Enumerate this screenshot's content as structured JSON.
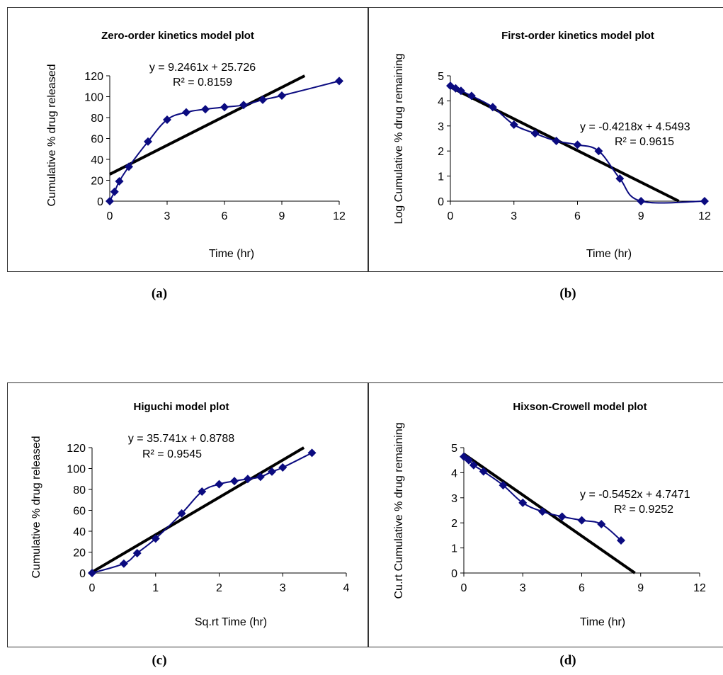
{
  "colors": {
    "series": "#0b0b80",
    "trendline": "#000000",
    "border": "#333333"
  },
  "chart_data": [
    {
      "type": "scatter",
      "title": "Zero-order kinetics model plot",
      "xlabel": "Time (hr)",
      "ylabel": "Cumulative % drug released",
      "xlim": [
        0,
        12
      ],
      "ylim": [
        0,
        120
      ],
      "xticks": [
        "0",
        "3",
        "6",
        "9",
        "12"
      ],
      "yticks": [
        "0",
        "20",
        "40",
        "60",
        "80",
        "100",
        "120"
      ],
      "grid": false,
      "series": [
        {
          "x": [
            0,
            0.25,
            0.5,
            1,
            2,
            3,
            4,
            5,
            6,
            7,
            8,
            9,
            12
          ],
          "y": [
            0,
            9,
            19,
            33,
            57,
            78,
            85,
            88,
            90,
            92,
            97,
            101,
            115
          ]
        }
      ],
      "trendline": {
        "slope": 9.2461,
        "intercept": 25.726
      },
      "equation": "y = 9.2461x + 25.726",
      "r2": "R² = 0.8159",
      "caption": "(a)"
    },
    {
      "type": "scatter",
      "title": "First-order kinetics model plot",
      "xlabel": "Time (hr)",
      "ylabel": "Log Cumulative % drug remaining",
      "xlim": [
        0,
        12
      ],
      "ylim": [
        0,
        5
      ],
      "xticks": [
        "0",
        "3",
        "6",
        "9",
        "12"
      ],
      "yticks": [
        "0",
        "1",
        "2",
        "3",
        "4",
        "5"
      ],
      "grid": false,
      "series": [
        {
          "x": [
            0,
            0.25,
            0.5,
            1,
            2,
            3,
            4,
            5,
            6,
            7,
            8,
            9,
            12
          ],
          "y": [
            4.6,
            4.5,
            4.4,
            4.2,
            3.75,
            3.05,
            2.7,
            2.4,
            2.25,
            2.0,
            0.9,
            0,
            0
          ]
        }
      ],
      "trendline": {
        "slope": -0.4218,
        "intercept": 4.5493
      },
      "equation": "y = -0.4218x + 4.5493",
      "r2": "R² = 0.9615",
      "caption": "(b)"
    },
    {
      "type": "scatter",
      "title": "Higuchi model plot",
      "xlabel": "Sq.rt Time (hr)",
      "ylabel": "Cumulative % drug released",
      "xlim": [
        0,
        4
      ],
      "ylim": [
        0,
        120
      ],
      "xticks": [
        "0",
        "1",
        "2",
        "3",
        "4"
      ],
      "yticks": [
        "0",
        "20",
        "40",
        "60",
        "80",
        "100",
        "120"
      ],
      "grid": false,
      "series": [
        {
          "x": [
            0,
            0.5,
            0.71,
            1,
            1.41,
            1.73,
            2,
            2.24,
            2.45,
            2.65,
            2.83,
            3,
            3.46
          ],
          "y": [
            0,
            9,
            19,
            33,
            57,
            78,
            85,
            88,
            90,
            92,
            97,
            101,
            115
          ]
        }
      ],
      "trendline": {
        "slope": 35.741,
        "intercept": 0.8788
      },
      "equation": "y = 35.741x + 0.8788",
      "r2": "R² = 0.9545",
      "caption": "(c)"
    },
    {
      "type": "scatter",
      "title": "Hixson-Crowell model plot",
      "xlabel": "Time (hr)",
      "ylabel": "Cu.rt Cumulative % drug remaining",
      "xlim": [
        0,
        12
      ],
      "ylim": [
        0,
        5
      ],
      "xticks": [
        "0",
        "3",
        "6",
        "9",
        "12"
      ],
      "yticks": [
        "0",
        "1",
        "2",
        "3",
        "4",
        "5"
      ],
      "grid": false,
      "series": [
        {
          "x": [
            0,
            0.25,
            0.5,
            1,
            2,
            3,
            4,
            5,
            6,
            7,
            8
          ],
          "y": [
            4.64,
            4.5,
            4.3,
            4.05,
            3.5,
            2.8,
            2.45,
            2.25,
            2.1,
            1.95,
            1.3
          ]
        }
      ],
      "trendline": {
        "slope": -0.5452,
        "intercept": 4.7471
      },
      "equation": "y = -0.5452x + 4.7471",
      "r2": "R² = 0.9252",
      "caption": "(d)"
    }
  ]
}
